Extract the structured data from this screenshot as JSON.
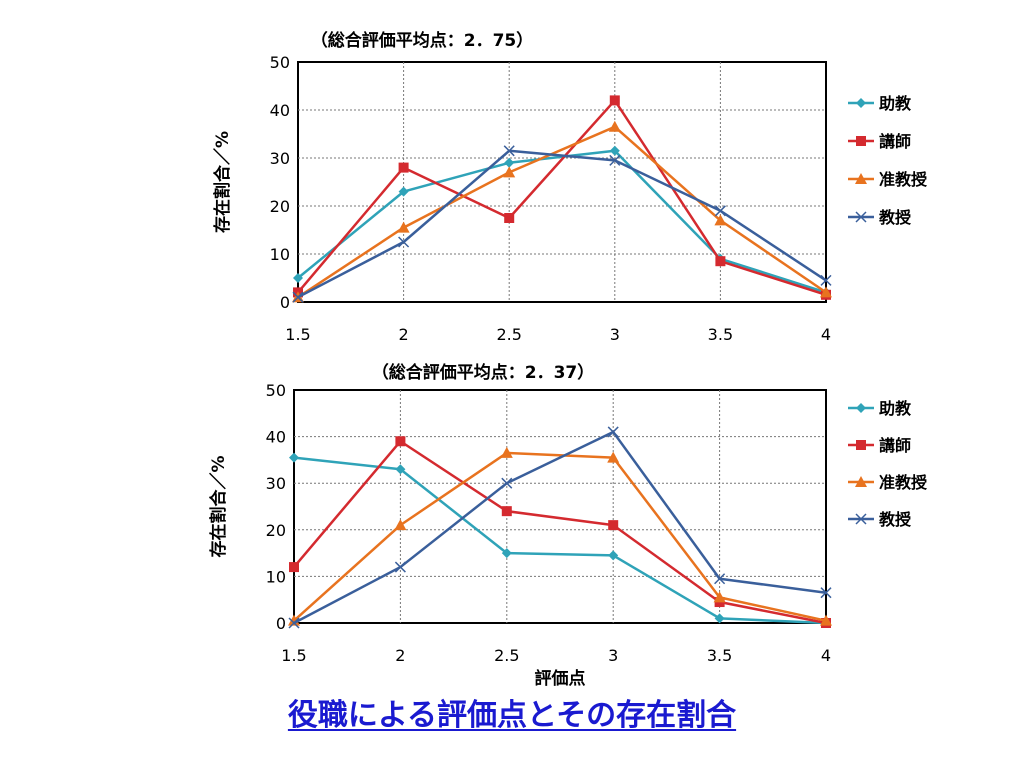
{
  "slide_title": "役職による評価点とその存在割合",
  "chart_data": [
    {
      "type": "line",
      "title": "（総合評価平均点：2．75）",
      "xlabel": "",
      "ylabel": "存在割合／%",
      "x": [
        1.5,
        2,
        2.5,
        3,
        3.5,
        4
      ],
      "xticks": [
        "1.5",
        "2",
        "2.5",
        "3",
        "3.5",
        "4"
      ],
      "ylim": [
        0,
        50
      ],
      "yticks": [
        "0",
        "10",
        "20",
        "30",
        "40",
        "50"
      ],
      "grid": true,
      "legend": "right",
      "series": [
        {
          "name": "助教",
          "color": "#2fa3b8",
          "marker": "diamond",
          "values": [
            5,
            23,
            29,
            31.5,
            9,
            2
          ]
        },
        {
          "name": "講師",
          "color": "#d42a2f",
          "marker": "square",
          "values": [
            2,
            28,
            17.5,
            42,
            8.5,
            1.5
          ]
        },
        {
          "name": "准教授",
          "color": "#e8731f",
          "marker": "triangle",
          "values": [
            1,
            15.5,
            27,
            36.5,
            17,
            2
          ]
        },
        {
          "name": "教授",
          "color": "#3a5f9b",
          "marker": "x",
          "values": [
            1,
            12.5,
            31.5,
            29.5,
            19,
            4.5
          ]
        }
      ]
    },
    {
      "type": "line",
      "title": "（総合評価平均点：2．37）",
      "xlabel": "評価点",
      "ylabel": "存在割合／%",
      "x": [
        1.5,
        2,
        2.5,
        3,
        3.5,
        4
      ],
      "xticks": [
        "1.5",
        "2",
        "2.5",
        "3",
        "3.5",
        "4"
      ],
      "ylim": [
        0,
        50
      ],
      "yticks": [
        "0",
        "10",
        "20",
        "30",
        "40",
        "50"
      ],
      "grid": true,
      "legend": "right",
      "series": [
        {
          "name": "助教",
          "color": "#2fa3b8",
          "marker": "diamond",
          "values": [
            35.5,
            33,
            15,
            14.5,
            1,
            0
          ]
        },
        {
          "name": "講師",
          "color": "#d42a2f",
          "marker": "square",
          "values": [
            12,
            39,
            24,
            21,
            4.5,
            0
          ]
        },
        {
          "name": "准教授",
          "color": "#e8731f",
          "marker": "triangle",
          "values": [
            0.5,
            21,
            36.5,
            35.5,
            5.5,
            0.5
          ]
        },
        {
          "name": "教授",
          "color": "#3a5f9b",
          "marker": "x",
          "values": [
            0,
            12,
            30,
            41,
            9.5,
            6.5
          ]
        }
      ]
    }
  ]
}
